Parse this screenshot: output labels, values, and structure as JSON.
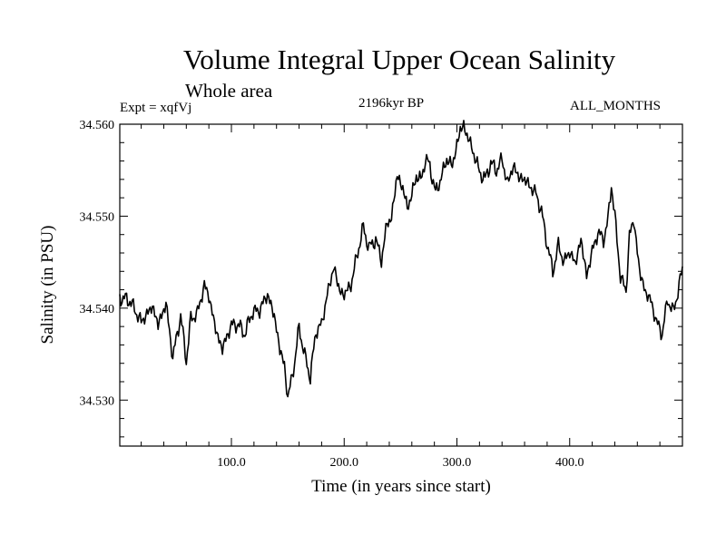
{
  "header": {
    "title": "Volume Integral Upper Ocean Salinity",
    "subtitle": "Whole area",
    "experiment": "Expt = xqfVj",
    "period": "2196kyr BP",
    "months": "ALL_MONTHS"
  },
  "chart_data": {
    "type": "line",
    "title": "Volume Integral Upper Ocean Salinity",
    "xlabel": "Time (in years since start)",
    "ylabel": "Salinity (in PSU)",
    "xlim": [
      1,
      500
    ],
    "ylim": [
      34.525,
      34.56
    ],
    "x_ticks": [
      100,
      200,
      300,
      400
    ],
    "x_tick_labels": [
      "100.0",
      "200.0",
      "300.0",
      "400.0"
    ],
    "y_ticks": [
      34.53,
      34.54,
      34.55,
      34.56
    ],
    "y_tick_labels": [
      "34.530",
      "34.540",
      "34.550",
      "34.560"
    ],
    "grid": false,
    "series": [
      {
        "name": "Salinity",
        "x": [
          1,
          10,
          20,
          30,
          35,
          42,
          48,
          55,
          60,
          64,
          70,
          76,
          80,
          87,
          92,
          100,
          106,
          112,
          118,
          125,
          132,
          138,
          143,
          147,
          150,
          156,
          160,
          165,
          170,
          175,
          180,
          185,
          191,
          196,
          200,
          206,
          211,
          217,
          222,
          228,
          233,
          238,
          242,
          247,
          252,
          256,
          260,
          264,
          268,
          272,
          276,
          281,
          286,
          291,
          296,
          300,
          303,
          306,
          310,
          315,
          320,
          325,
          330,
          335,
          340,
          345,
          350,
          355,
          360,
          365,
          370,
          375,
          380,
          385,
          390,
          395,
          400,
          405,
          410,
          415,
          420,
          425,
          430,
          434,
          437,
          440,
          445,
          450,
          453,
          457,
          462,
          467,
          472,
          477,
          482,
          487,
          492,
          497,
          500
        ],
        "y": [
          34.5412,
          34.5408,
          34.5385,
          34.5402,
          34.5382,
          34.5405,
          34.5346,
          34.5392,
          34.5343,
          34.5388,
          34.5395,
          34.5425,
          34.5413,
          34.5372,
          34.5356,
          34.5382,
          34.5382,
          34.5372,
          34.5395,
          34.5398,
          34.5415,
          34.5392,
          34.5355,
          34.5338,
          34.5302,
          34.534,
          34.538,
          34.5348,
          34.5325,
          34.5375,
          34.5382,
          34.5415,
          34.5445,
          34.5418,
          34.5415,
          34.5425,
          34.5455,
          34.5488,
          34.5465,
          34.5475,
          34.5452,
          34.5492,
          34.5498,
          34.5545,
          34.553,
          34.551,
          34.5522,
          34.5545,
          34.5538,
          34.5562,
          34.5555,
          34.5525,
          34.5542,
          34.5562,
          34.5555,
          34.5578,
          34.5594,
          34.5598,
          34.5585,
          34.5568,
          34.5548,
          34.554,
          34.5558,
          34.555,
          34.5562,
          34.5535,
          34.5555,
          34.5542,
          34.554,
          34.5532,
          34.5525,
          34.5505,
          34.547,
          34.544,
          34.5468,
          34.545,
          34.5462,
          34.5448,
          34.5475,
          34.5435,
          34.5462,
          34.5482,
          34.5475,
          34.5495,
          34.5535,
          34.55,
          34.5435,
          34.5418,
          34.548,
          34.5495,
          34.544,
          34.5418,
          34.5408,
          34.5385,
          34.5372,
          34.541,
          34.5395,
          34.5425,
          34.5442
        ]
      }
    ]
  }
}
